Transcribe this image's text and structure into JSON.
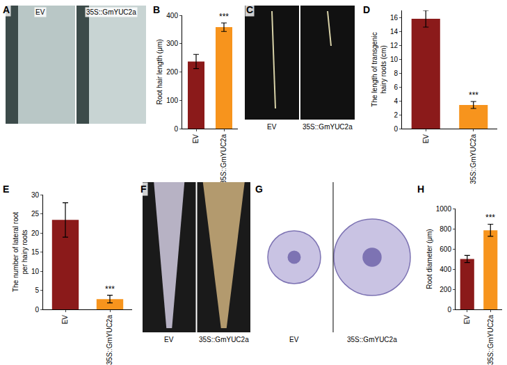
{
  "chart_data": [
    {
      "panel": "B",
      "type": "bar",
      "categories": [
        "EV",
        "35S::GmYUC2a"
      ],
      "values": [
        237,
        358
      ],
      "error": [
        25,
        15
      ],
      "colors": [
        "#8b1a1a",
        "#f7941d"
      ],
      "ylabel": "Root hair length (μm)",
      "ylim": [
        0,
        400
      ],
      "yticks": [
        0,
        100,
        200,
        300,
        400
      ],
      "annotations": [
        {
          "x": "35S::GmYUC2a",
          "text": "***"
        }
      ]
    },
    {
      "panel": "D",
      "type": "bar",
      "categories": [
        "EV",
        "35S::GmYUC2a"
      ],
      "values": [
        15.8,
        3.4
      ],
      "error": [
        1.2,
        0.5
      ],
      "colors": [
        "#8b1a1a",
        "#f7941d"
      ],
      "ylabel": "The length of transgenic hairy roots (cm)",
      "ylim": [
        0,
        17
      ],
      "yticks": [
        0,
        2,
        4,
        6,
        8,
        10,
        12,
        14,
        16
      ],
      "annotations": [
        {
          "x": "35S::GmYUC2a",
          "text": "***"
        }
      ]
    },
    {
      "panel": "E",
      "type": "bar",
      "categories": [
        "EV",
        "35S::GmYUC2a"
      ],
      "values": [
        23.4,
        2.7
      ],
      "error": [
        4.5,
        1.0
      ],
      "colors": [
        "#8b1a1a",
        "#f7941d"
      ],
      "ylabel": "The number of lateral root per hairy roots",
      "ylim": [
        0,
        30
      ],
      "yticks": [
        0,
        5,
        10,
        15,
        20,
        25,
        30
      ],
      "annotations": [
        {
          "x": "35S::GmYUC2a",
          "text": "***"
        }
      ]
    },
    {
      "panel": "H",
      "type": "bar",
      "categories": [
        "EV",
        "35S::GmYUC2a"
      ],
      "values": [
        500,
        785
      ],
      "error": [
        35,
        60
      ],
      "colors": [
        "#8b1a1a",
        "#f7941d"
      ],
      "ylabel": "Root diameter (μm)",
      "ylim": [
        0,
        1000
      ],
      "yticks": [
        0,
        200,
        400,
        600,
        800,
        1000
      ],
      "annotations": [
        {
          "x": "35S::GmYUC2a",
          "text": "***"
        }
      ]
    }
  ],
  "image_panels": [
    {
      "panel": "A",
      "labels": [
        "EV",
        "35S::GmYUC2a"
      ]
    },
    {
      "panel": "C",
      "labels": [
        "EV",
        "35S::GmYUC2a"
      ]
    },
    {
      "panel": "F",
      "labels": [
        "EV",
        "35S::GmYUC2a"
      ]
    },
    {
      "panel": "G",
      "labels": [
        "EV",
        "35S::GmYUC2a"
      ]
    }
  ]
}
